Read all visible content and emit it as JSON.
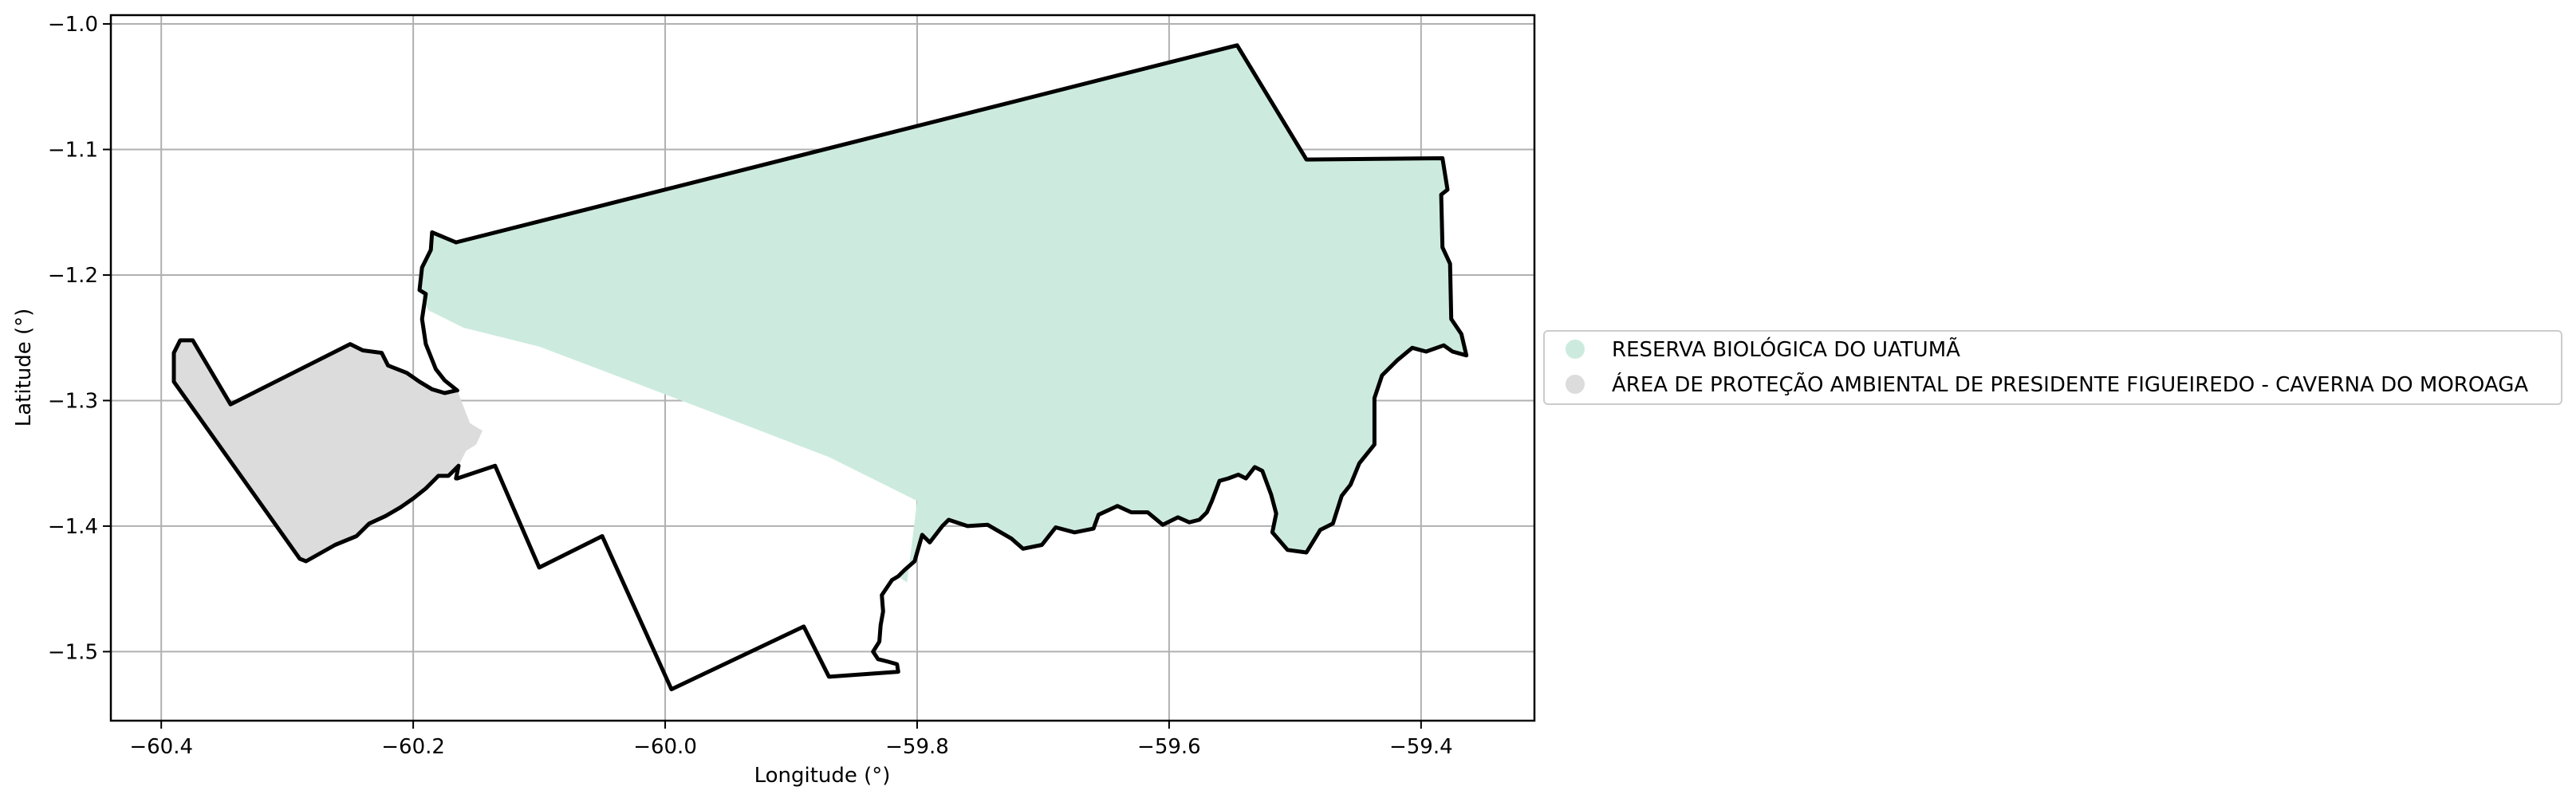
{
  "chart_data": {
    "type": "map",
    "title": "",
    "xlabel": "Longitude (°)",
    "ylabel": "Latitude (°)",
    "xlim": [
      -60.44,
      -59.31
    ],
    "ylim": [
      -1.555,
      -0.993
    ],
    "x_ticks": [
      -60.4,
      -60.2,
      -60.0,
      -59.8,
      -59.6,
      -59.4
    ],
    "x_tick_labels": [
      "−60.4",
      "−60.2",
      "−60.0",
      "−59.8",
      "−59.6",
      "−59.4"
    ],
    "y_ticks": [
      -1.0,
      -1.1,
      -1.2,
      -1.3,
      -1.4,
      -1.5
    ],
    "y_tick_labels": [
      "−1.0",
      "−1.1",
      "−1.2",
      "−1.3",
      "−1.4",
      "−1.5"
    ],
    "grid": true,
    "legend_placement": "outside right, vertically centered",
    "areas": [
      {
        "name": "RESERVA BIOLÓGICA DO UATUMÃ",
        "fill": "#ccebde",
        "outline": [
          [
            -60.166,
            -1.174
          ],
          [
            -59.546,
            -1.017
          ],
          [
            -59.491,
            -1.108
          ],
          [
            -59.383,
            -1.107
          ],
          [
            -59.379,
            -1.132
          ],
          [
            -59.384,
            -1.136
          ],
          [
            -59.383,
            -1.178
          ],
          [
            -59.377,
            -1.191
          ],
          [
            -59.376,
            -1.235
          ],
          [
            -59.368,
            -1.247
          ],
          [
            -59.364,
            -1.264
          ],
          [
            -59.375,
            -1.261
          ],
          [
            -59.382,
            -1.256
          ],
          [
            -59.396,
            -1.261
          ],
          [
            -59.407,
            -1.258
          ],
          [
            -59.419,
            -1.268
          ],
          [
            -59.431,
            -1.28
          ],
          [
            -59.437,
            -1.298
          ],
          [
            -59.437,
            -1.335
          ],
          [
            -59.449,
            -1.35
          ],
          [
            -59.456,
            -1.367
          ],
          [
            -59.463,
            -1.376
          ],
          [
            -59.47,
            -1.398
          ],
          [
            -59.48,
            -1.403
          ],
          [
            -59.491,
            -1.421
          ],
          [
            -59.506,
            -1.419
          ],
          [
            -59.518,
            -1.405
          ],
          [
            -59.515,
            -1.39
          ],
          [
            -59.519,
            -1.375
          ],
          [
            -59.526,
            -1.356
          ],
          [
            -59.532,
            -1.353
          ],
          [
            -59.539,
            -1.362
          ],
          [
            -59.545,
            -1.359
          ],
          [
            -59.553,
            -1.362
          ],
          [
            -59.56,
            -1.364
          ],
          [
            -59.566,
            -1.38
          ],
          [
            -59.57,
            -1.389
          ],
          [
            -59.576,
            -1.395
          ],
          [
            -59.584,
            -1.397
          ],
          [
            -59.593,
            -1.393
          ],
          [
            -59.605,
            -1.399
          ],
          [
            -59.617,
            -1.389
          ],
          [
            -59.63,
            -1.389
          ],
          [
            -59.641,
            -1.384
          ],
          [
            -59.656,
            -1.391
          ],
          [
            -59.66,
            -1.402
          ],
          [
            -59.675,
            -1.405
          ],
          [
            -59.69,
            -1.401
          ],
          [
            -59.701,
            -1.415
          ],
          [
            -59.716,
            -1.418
          ],
          [
            -59.725,
            -1.41
          ],
          [
            -59.744,
            -1.399
          ],
          [
            -59.76,
            -1.4
          ],
          [
            -59.775,
            -1.395
          ],
          [
            -59.78,
            -1.4
          ],
          [
            -59.79,
            -1.413
          ],
          [
            -59.796,
            -1.407
          ],
          [
            -59.802,
            -1.428
          ],
          [
            -59.81,
            -1.435
          ],
          [
            -59.815,
            -1.44
          ],
          [
            -59.808,
            -1.445
          ],
          [
            -59.8,
            -1.38
          ],
          [
            -59.87,
            -1.345
          ],
          [
            -60.0,
            -1.295
          ],
          [
            -60.1,
            -1.257
          ],
          [
            -60.16,
            -1.242
          ],
          [
            -60.188,
            -1.228
          ],
          [
            -60.195,
            -1.212
          ],
          [
            -60.193,
            -1.194
          ],
          [
            -60.186,
            -1.18
          ],
          [
            -60.185,
            -1.166
          ]
        ]
      },
      {
        "name": "ÁREA DE PROTEÇÃO AMBIENTAL DE PRESIDENTE FIGUEIREDO - CAVERNA DO MOROAGA",
        "fill": "#dcdcdc",
        "outline": [
          [
            -60.39,
            -1.262
          ],
          [
            -60.385,
            -1.252
          ],
          [
            -60.375,
            -1.252
          ],
          [
            -60.345,
            -1.303
          ],
          [
            -60.25,
            -1.255
          ],
          [
            -60.24,
            -1.26
          ],
          [
            -60.225,
            -1.262
          ],
          [
            -60.22,
            -1.272
          ],
          [
            -60.205,
            -1.278
          ],
          [
            -60.195,
            -1.285
          ],
          [
            -60.185,
            -1.291
          ],
          [
            -60.175,
            -1.294
          ],
          [
            -60.165,
            -1.292
          ],
          [
            -60.16,
            -1.305
          ],
          [
            -60.155,
            -1.318
          ],
          [
            -60.145,
            -1.324
          ],
          [
            -60.15,
            -1.335
          ],
          [
            -60.158,
            -1.34
          ],
          [
            -60.164,
            -1.352
          ],
          [
            -60.172,
            -1.36
          ],
          [
            -60.18,
            -1.36
          ],
          [
            -60.19,
            -1.37
          ],
          [
            -60.2,
            -1.378
          ],
          [
            -60.21,
            -1.385
          ],
          [
            -60.222,
            -1.392
          ],
          [
            -60.235,
            -1.398
          ],
          [
            -60.245,
            -1.408
          ],
          [
            -60.262,
            -1.415
          ],
          [
            -60.285,
            -1.428
          ],
          [
            -60.29,
            -1.426
          ],
          [
            -60.39,
            -1.285
          ]
        ]
      }
    ],
    "boundary_lines": [
      {
        "name": "outer-boundary",
        "points": [
          [
            -60.166,
            -1.174
          ],
          [
            -59.546,
            -1.017
          ],
          [
            -59.491,
            -1.108
          ],
          [
            -59.383,
            -1.107
          ],
          [
            -59.379,
            -1.132
          ],
          [
            -59.384,
            -1.136
          ],
          [
            -59.383,
            -1.178
          ],
          [
            -59.377,
            -1.191
          ],
          [
            -59.376,
            -1.235
          ],
          [
            -59.368,
            -1.247
          ],
          [
            -59.364,
            -1.264
          ],
          [
            -59.375,
            -1.261
          ],
          [
            -59.382,
            -1.256
          ],
          [
            -59.396,
            -1.261
          ],
          [
            -59.407,
            -1.258
          ],
          [
            -59.419,
            -1.268
          ],
          [
            -59.431,
            -1.28
          ],
          [
            -59.437,
            -1.298
          ],
          [
            -59.437,
            -1.335
          ],
          [
            -59.449,
            -1.35
          ],
          [
            -59.456,
            -1.367
          ],
          [
            -59.463,
            -1.376
          ],
          [
            -59.47,
            -1.398
          ],
          [
            -59.48,
            -1.403
          ],
          [
            -59.491,
            -1.421
          ],
          [
            -59.506,
            -1.419
          ],
          [
            -59.518,
            -1.405
          ],
          [
            -59.515,
            -1.39
          ],
          [
            -59.519,
            -1.375
          ],
          [
            -59.526,
            -1.356
          ],
          [
            -59.532,
            -1.353
          ],
          [
            -59.539,
            -1.362
          ],
          [
            -59.545,
            -1.359
          ],
          [
            -59.553,
            -1.362
          ],
          [
            -59.56,
            -1.364
          ],
          [
            -59.566,
            -1.38
          ],
          [
            -59.57,
            -1.389
          ],
          [
            -59.576,
            -1.395
          ],
          [
            -59.584,
            -1.397
          ],
          [
            -59.593,
            -1.393
          ],
          [
            -59.605,
            -1.399
          ],
          [
            -59.617,
            -1.389
          ],
          [
            -59.63,
            -1.389
          ],
          [
            -59.641,
            -1.384
          ],
          [
            -59.656,
            -1.391
          ],
          [
            -59.66,
            -1.402
          ],
          [
            -59.675,
            -1.405
          ],
          [
            -59.69,
            -1.401
          ],
          [
            -59.701,
            -1.415
          ],
          [
            -59.716,
            -1.418
          ],
          [
            -59.725,
            -1.41
          ],
          [
            -59.744,
            -1.399
          ],
          [
            -59.76,
            -1.4
          ],
          [
            -59.775,
            -1.395
          ],
          [
            -59.78,
            -1.4
          ],
          [
            -59.79,
            -1.413
          ],
          [
            -59.796,
            -1.407
          ],
          [
            -59.802,
            -1.428
          ],
          [
            -59.81,
            -1.435
          ],
          [
            -59.815,
            -1.44
          ],
          [
            -59.82,
            -1.443
          ],
          [
            -59.828,
            -1.455
          ],
          [
            -59.827,
            -1.468
          ],
          [
            -59.829,
            -1.479
          ],
          [
            -59.83,
            -1.492
          ],
          [
            -59.835,
            -1.5
          ],
          [
            -59.831,
            -1.506
          ],
          [
            -59.823,
            -1.508
          ],
          [
            -59.816,
            -1.51
          ],
          [
            -59.815,
            -1.516
          ],
          [
            -59.87,
            -1.52
          ],
          [
            -59.89,
            -1.48
          ],
          [
            -59.995,
            -1.53
          ],
          [
            -60.05,
            -1.408
          ],
          [
            -60.1,
            -1.433
          ],
          [
            -60.135,
            -1.352
          ],
          [
            -60.165,
            -1.362
          ]
        ]
      },
      {
        "name": "outer-boundary-north",
        "points": [
          [
            -60.165,
            -1.292
          ],
          [
            -60.175,
            -1.284
          ],
          [
            -60.182,
            -1.275
          ],
          [
            -60.19,
            -1.255
          ],
          [
            -60.193,
            -1.235
          ],
          [
            -60.19,
            -1.215
          ],
          [
            -60.195,
            -1.212
          ],
          [
            -60.193,
            -1.194
          ],
          [
            -60.186,
            -1.18
          ],
          [
            -60.185,
            -1.166
          ],
          [
            -60.166,
            -1.174
          ]
        ]
      },
      {
        "name": "apa-boundary",
        "points": [
          [
            -60.166,
            -1.292
          ],
          [
            -60.175,
            -1.294
          ],
          [
            -60.185,
            -1.291
          ],
          [
            -60.195,
            -1.285
          ],
          [
            -60.205,
            -1.278
          ],
          [
            -60.22,
            -1.272
          ],
          [
            -60.225,
            -1.262
          ],
          [
            -60.24,
            -1.26
          ],
          [
            -60.25,
            -1.255
          ],
          [
            -60.345,
            -1.303
          ],
          [
            -60.375,
            -1.252
          ],
          [
            -60.385,
            -1.252
          ],
          [
            -60.39,
            -1.262
          ],
          [
            -60.39,
            -1.285
          ],
          [
            -60.29,
            -1.426
          ],
          [
            -60.285,
            -1.428
          ],
          [
            -60.262,
            -1.415
          ],
          [
            -60.245,
            -1.408
          ],
          [
            -60.235,
            -1.398
          ],
          [
            -60.222,
            -1.392
          ],
          [
            -60.21,
            -1.385
          ],
          [
            -60.2,
            -1.378
          ],
          [
            -60.19,
            -1.37
          ],
          [
            -60.18,
            -1.36
          ],
          [
            -60.172,
            -1.36
          ],
          [
            -60.164,
            -1.352
          ],
          [
            -60.166,
            -1.362
          ]
        ]
      }
    ]
  },
  "legend": {
    "items": [
      {
        "label": "RESERVA BIOLÓGICA DO UATUMÃ",
        "color": "#ccebde"
      },
      {
        "label": "ÁREA DE PROTEÇÃO AMBIENTAL DE PRESIDENTE FIGUEIREDO - CAVERNA DO MOROAGA",
        "color": "#dcdcdc"
      }
    ]
  }
}
